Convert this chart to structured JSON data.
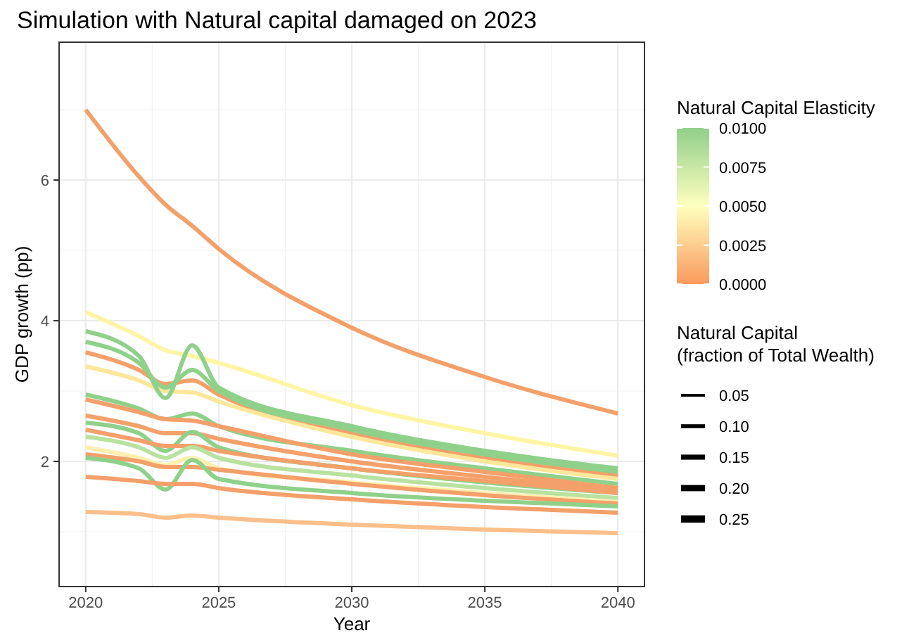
{
  "chart_data": {
    "type": "line",
    "title": "Simulation with Natural capital damaged on 2023",
    "xlabel": "Year",
    "ylabel": "GDP growth (pp)",
    "clabel": "Natural Capital Elasticity",
    "legend_title": "Natural Capital\n(fraction of Total Wealth)",
    "annotations": [
      "0.05",
      "0.10",
      "0.15",
      "0.20",
      "0.25"
    ],
    "x": [
      2020,
      2022,
      2023,
      2024,
      2025,
      2030,
      2035,
      2040
    ],
    "xlim": [
      2019,
      2041
    ],
    "xticks": [
      2020,
      2025,
      2030,
      2035,
      2040
    ],
    "ylim": [
      0.22,
      7.96
    ],
    "yticks": [
      2,
      4,
      6
    ],
    "grid": true,
    "clim": [
      0,
      0.01
    ],
    "cticks": [
      {
        "value": 0,
        "label": "0.0000"
      },
      {
        "value": 0.0025,
        "label": "0.0025"
      },
      {
        "value": 0.005,
        "label": "0.0050"
      },
      {
        "value": 0.0075,
        "label": "0.0075"
      },
      {
        "value": 0.01,
        "label": "0.0100"
      }
    ],
    "series": [
      {
        "color": "#f4a06a",
        "values": [
          7.0,
          6.05,
          5.65,
          5.35,
          5.02,
          3.9,
          3.2,
          2.68
        ]
      },
      {
        "color": "#fff5a5",
        "values": [
          4.12,
          3.78,
          3.58,
          3.5,
          3.4,
          2.8,
          2.4,
          2.08
        ]
      },
      {
        "color": "#f4a06a",
        "values": [
          3.55,
          3.3,
          3.1,
          3.15,
          2.95,
          2.4,
          2.05,
          1.8
        ]
      },
      {
        "color": "#fde79a",
        "values": [
          3.35,
          3.15,
          3.0,
          2.98,
          2.85,
          2.35,
          2.0,
          1.75
        ]
      },
      {
        "color": "#8fd18a",
        "values": [
          3.7,
          3.4,
          3.05,
          3.3,
          3.0,
          2.45,
          2.1,
          1.85
        ]
      },
      {
        "color": "#8fd18a",
        "values": [
          3.85,
          3.5,
          2.9,
          3.65,
          3.05,
          2.5,
          2.15,
          1.9
        ]
      },
      {
        "color": "#8fd18a",
        "values": [
          2.95,
          2.75,
          2.6,
          2.68,
          2.5,
          2.15,
          1.9,
          1.68
        ]
      },
      {
        "color": "#f4a06a",
        "values": [
          2.88,
          2.7,
          2.6,
          2.58,
          2.5,
          2.1,
          1.85,
          1.62
        ]
      },
      {
        "color": "#f4a06a",
        "values": [
          2.65,
          2.5,
          2.4,
          2.4,
          2.32,
          2.0,
          1.78,
          1.6
        ]
      },
      {
        "color": "#8fd18a",
        "values": [
          2.55,
          2.4,
          2.15,
          2.42,
          2.2,
          1.9,
          1.7,
          1.55
        ]
      },
      {
        "color": "#f4a06a",
        "values": [
          2.45,
          2.3,
          2.22,
          2.22,
          2.15,
          1.9,
          1.72,
          1.55
        ]
      },
      {
        "color": "#b8e2a0",
        "values": [
          2.35,
          2.2,
          2.05,
          2.2,
          2.05,
          1.8,
          1.62,
          1.48
        ]
      },
      {
        "color": "#fff0b0",
        "values": [
          2.2,
          2.05,
          1.95,
          2.05,
          1.9,
          1.7,
          1.55,
          1.42
        ]
      },
      {
        "color": "#f4a06a",
        "values": [
          2.1,
          2.0,
          1.92,
          1.92,
          1.88,
          1.68,
          1.52,
          1.4
        ]
      },
      {
        "color": "#8fd18a",
        "values": [
          2.05,
          1.9,
          1.6,
          2.02,
          1.75,
          1.55,
          1.44,
          1.36
        ]
      },
      {
        "color": "#f4a06a",
        "values": [
          1.78,
          1.72,
          1.68,
          1.68,
          1.62,
          1.46,
          1.35,
          1.27
        ]
      },
      {
        "color": "#fbbf8a",
        "values": [
          1.28,
          1.25,
          1.2,
          1.23,
          1.2,
          1.1,
          1.03,
          0.98
        ]
      }
    ]
  }
}
